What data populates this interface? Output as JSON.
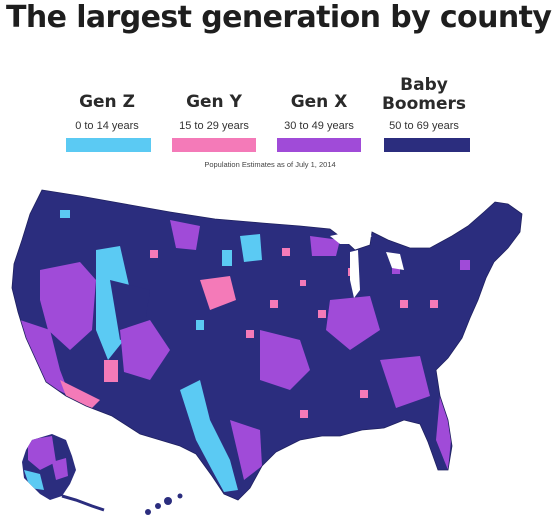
{
  "title": "The largest generation by county",
  "legend": {
    "items": [
      {
        "name": "Gen Z",
        "range": "0 to 14 years",
        "color": "#5bcaf3"
      },
      {
        "name": "Gen Y",
        "range": "15 to 29 years",
        "color": "#f47ab8"
      },
      {
        "name": "Gen X",
        "range": "30 to 49 years",
        "color": "#a04bd8"
      },
      {
        "name": "Baby Boomers",
        "range": "50 to 69 years",
        "color": "#2b2d7e"
      }
    ]
  },
  "source_note": "Population Estimates as of July 1, 2014"
}
